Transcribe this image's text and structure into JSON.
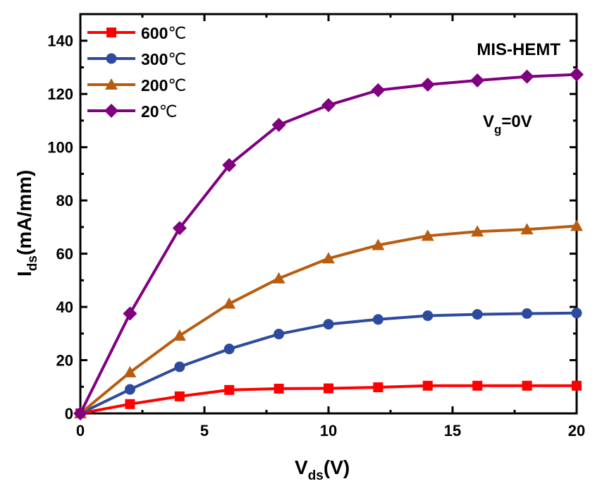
{
  "chart_data": {
    "type": "line",
    "title": "",
    "xlabel": "V_ds(V)",
    "xlabel_main": "V",
    "xlabel_sub": "ds",
    "xlabel_tail": "(V)",
    "ylabel": "I_ds(mA/mm)",
    "ylabel_main": "I",
    "ylabel_sub": "ds",
    "ylabel_tail": "(mA/mm)",
    "xlim": [
      0,
      20
    ],
    "ylim": [
      0,
      150
    ],
    "xticks": [
      0,
      5,
      10,
      15,
      20
    ],
    "xtick_labels": [
      "0",
      "5",
      "10",
      "15",
      "20"
    ],
    "yticks": [
      0,
      20,
      40,
      60,
      80,
      100,
      120,
      140
    ],
    "ytick_labels": [
      "0",
      "20",
      "40",
      "60",
      "80",
      "100",
      "120",
      "140"
    ],
    "grid": false,
    "legend_position": "top-left",
    "x": [
      0,
      2,
      4,
      6,
      8,
      10,
      12,
      14,
      16,
      18,
      20
    ],
    "series": [
      {
        "name": "600℃",
        "temp": "600",
        "unit": "℃",
        "color": "#ff0000",
        "marker": "square",
        "values": [
          0,
          3.5,
          6.4,
          8.8,
          9.3,
          9.4,
          9.8,
          10.4,
          10.4,
          10.4,
          10.4
        ]
      },
      {
        "name": "300℃",
        "temp": "300",
        "unit": "℃",
        "color": "#2e4a9e",
        "marker": "circle",
        "values": [
          0,
          9.0,
          17.5,
          24.2,
          29.8,
          33.5,
          35.3,
          36.7,
          37.2,
          37.5,
          37.7
        ]
      },
      {
        "name": "200℃",
        "temp": "200",
        "unit": "℃",
        "color": "#b85c0f",
        "marker": "triangle",
        "values": [
          0,
          15.4,
          29.2,
          41.2,
          50.7,
          58.2,
          63.2,
          66.7,
          68.3,
          69.1,
          70.4
        ]
      },
      {
        "name": "20℃",
        "temp": "20",
        "unit": "℃",
        "color": "#800080",
        "marker": "diamond",
        "values": [
          0,
          37.5,
          69.6,
          93.3,
          108.4,
          115.8,
          121.4,
          123.5,
          125.1,
          126.5,
          127.3
        ]
      }
    ],
    "annotations": {
      "device": "MIS-HEMT",
      "gate_main": "V",
      "gate_sub": "g",
      "gate_tail": "=0V"
    }
  }
}
